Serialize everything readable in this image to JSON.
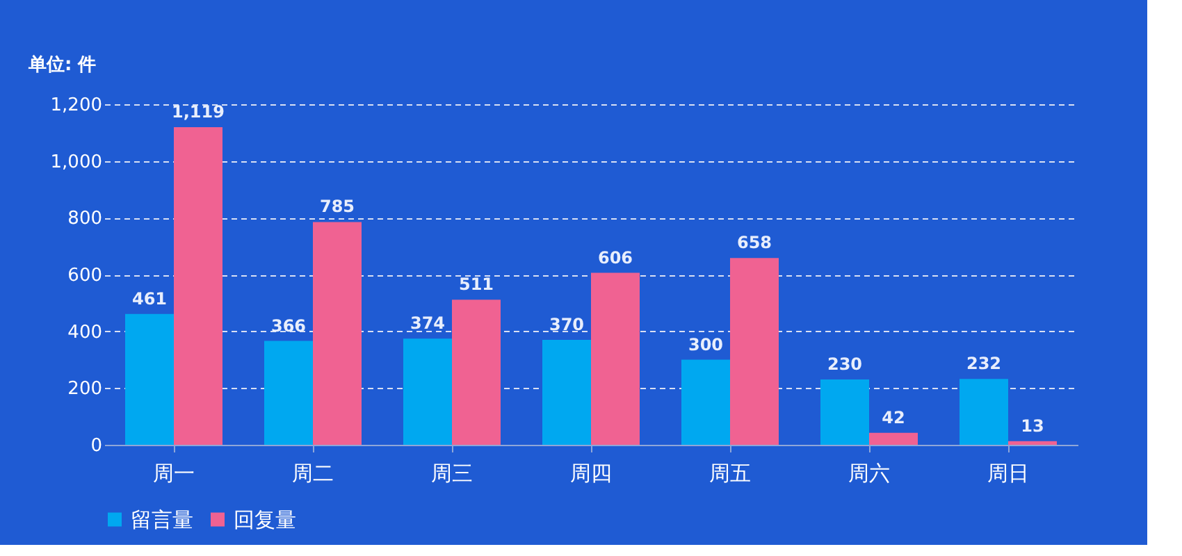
{
  "chart_data": {
    "type": "bar",
    "ylabel": "单位: 件",
    "categories": [
      "周一",
      "周二",
      "周三",
      "周四",
      "周五",
      "周六",
      "周日"
    ],
    "series": [
      {
        "name": "留言量",
        "color": "#00a8f0",
        "values": [
          461,
          366,
          374,
          370,
          300,
          230,
          232
        ],
        "value_labels": [
          "461",
          "366",
          "374",
          "370",
          "300",
          "230",
          "232"
        ]
      },
      {
        "name": "回复量",
        "color": "#f06292",
        "values": [
          1119,
          785,
          511,
          606,
          658,
          42,
          13
        ],
        "value_labels": [
          "1,119",
          "785",
          "511",
          "606",
          "658",
          "42",
          "13"
        ]
      }
    ],
    "ylim": [
      0,
      1200
    ],
    "yticks": [
      0,
      200,
      400,
      600,
      {
        "value": 800,
        "label": "800"
      },
      {
        "value": 1000,
        "label": "1,000"
      },
      {
        "value": 1200,
        "label": "1,200"
      }
    ],
    "grid": "y",
    "legend": "bottom"
  }
}
